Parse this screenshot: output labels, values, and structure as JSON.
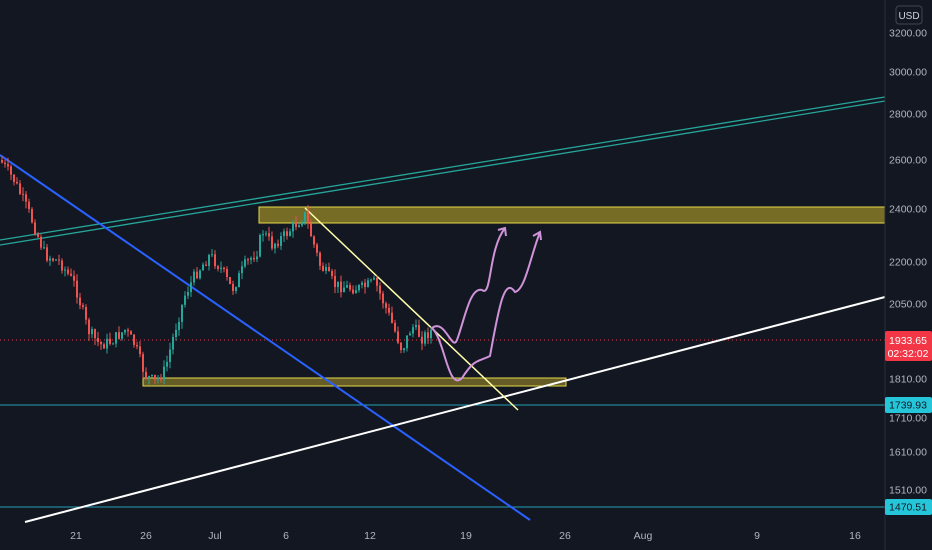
{
  "chart_data": {
    "type": "candlestick",
    "currency": "USD",
    "y_scale": "log",
    "y_ticks": [
      "3200.00",
      "3000.00",
      "2800.00",
      "2600.00",
      "2400.00",
      "2200.00",
      "2050.00",
      "1810.00",
      "1710.00",
      "1610.00",
      "1510.00"
    ],
    "x_ticks": [
      "21",
      "26",
      "Jul",
      "6",
      "12",
      "19",
      "26",
      "Aug",
      "9",
      "16"
    ],
    "last_price": {
      "value": "1933.65",
      "countdown": "02:32:02",
      "color": "#f23645"
    },
    "support_lines": [
      {
        "value": "1739.93",
        "color": "#26c6da"
      },
      {
        "value": "1470.51",
        "color": "#26c6da"
      }
    ],
    "colors": {
      "up": "#26a69a",
      "down": "#ef5350",
      "zone": "#c9b32a",
      "channel": "#26a69a",
      "blue_trend": "#2962ff",
      "white_trend": "#ffffff",
      "short_trend": "#ffffaa",
      "projection": "#ce93d8"
    }
  }
}
